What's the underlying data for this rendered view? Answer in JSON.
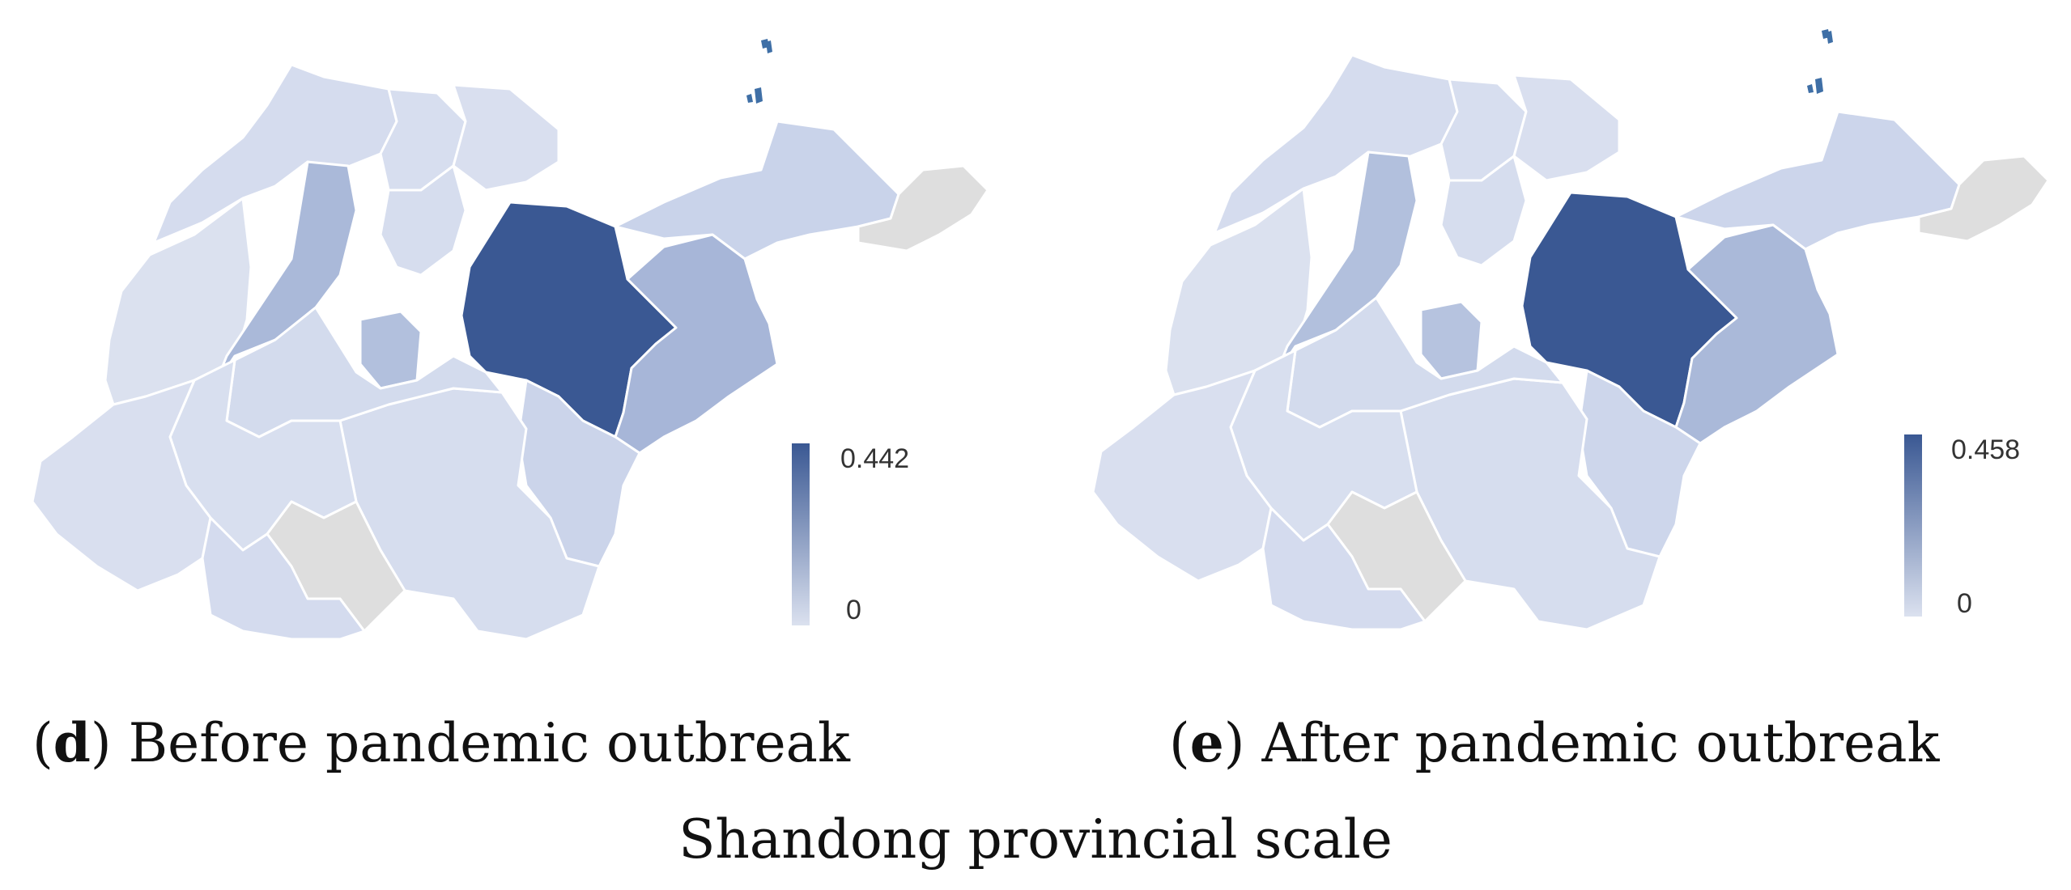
{
  "figure": {
    "scale_title": "Shandong provincial scale"
  },
  "panels": [
    {
      "id": "d",
      "letter": "d",
      "caption": "Before pandemic outbreak",
      "legend": {
        "max_label": "0.442",
        "min_label": "0",
        "max": 0.442,
        "min": 0
      }
    },
    {
      "id": "e",
      "letter": "e",
      "caption": "After pandemic outbreak",
      "legend": {
        "max_label": "0.458",
        "min_label": "0",
        "max": 0.458,
        "min": 0
      }
    }
  ],
  "colors": {
    "ramp_low": "#dbe1ef",
    "ramp_high": "#3a5893",
    "no_data": "#dedede",
    "border": "#ffffff"
  }
}
